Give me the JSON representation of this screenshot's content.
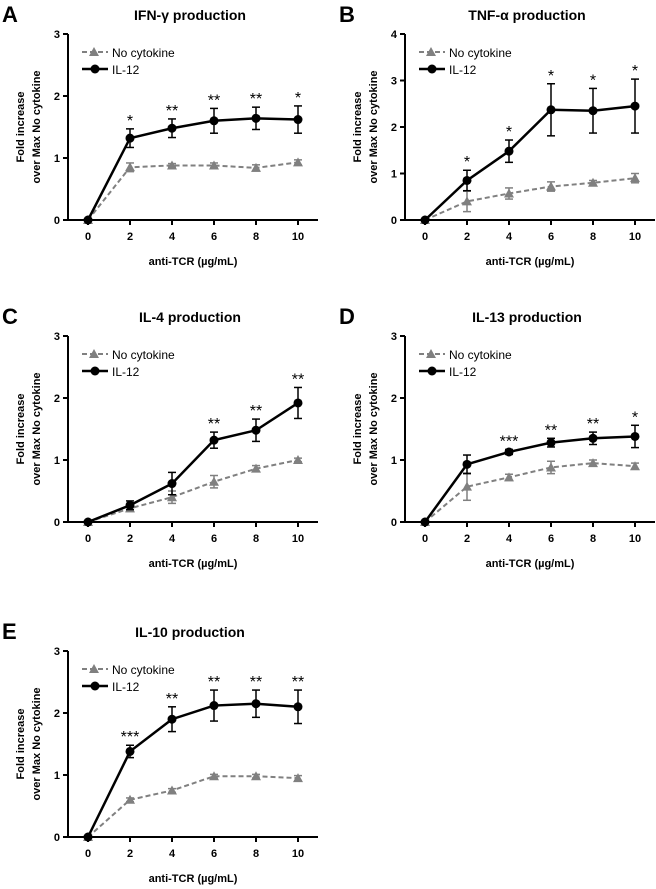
{
  "colors": {
    "il12": "#000000",
    "nocyt": "#808080"
  },
  "chart_data": [
    {
      "type": "line",
      "panel": "A",
      "title": "IFN-γ production",
      "xlabel": "anti-TCR (µg/mL)",
      "ylabel": [
        "Fold increase",
        "over Max No cytokine"
      ],
      "x": [
        0,
        2,
        4,
        6,
        8,
        10
      ],
      "xticks": [
        "0",
        "2",
        "4",
        "6",
        "8",
        "10"
      ],
      "ylim": [
        0,
        3
      ],
      "yticks": [
        "0",
        "1",
        "2",
        "3"
      ],
      "legend": "top-left",
      "series": [
        {
          "name": "No cytokine",
          "values": [
            0,
            0.85,
            0.88,
            0.88,
            0.84,
            0.93
          ],
          "errors": [
            0,
            0.07,
            0.03,
            0.04,
            0.05,
            0.04
          ]
        },
        {
          "name": "IL-12",
          "values": [
            0,
            1.32,
            1.48,
            1.6,
            1.64,
            1.62
          ],
          "errors": [
            0,
            0.15,
            0.15,
            0.2,
            0.18,
            0.22
          ]
        }
      ],
      "significance": [
        "",
        "*",
        "**",
        "**",
        "**",
        "*"
      ]
    },
    {
      "type": "line",
      "panel": "B",
      "title": "TNF-α production",
      "xlabel": "anti-TCR (µg/mL)",
      "ylabel": [
        "Fold increase",
        "over Max No cytokine"
      ],
      "x": [
        0,
        2,
        4,
        6,
        8,
        10
      ],
      "xticks": [
        "0",
        "2",
        "4",
        "6",
        "8",
        "10"
      ],
      "ylim": [
        0,
        4
      ],
      "yticks": [
        "0",
        "1",
        "2",
        "3",
        "4"
      ],
      "legend": "top-left",
      "series": [
        {
          "name": "No cytokine",
          "values": [
            0,
            0.4,
            0.57,
            0.72,
            0.8,
            0.9
          ],
          "errors": [
            0,
            0.22,
            0.12,
            0.1,
            0.05,
            0.1
          ]
        },
        {
          "name": "IL-12",
          "values": [
            0,
            0.85,
            1.48,
            2.37,
            2.35,
            2.45
          ],
          "errors": [
            0,
            0.22,
            0.24,
            0.56,
            0.48,
            0.58
          ]
        }
      ],
      "significance": [
        "",
        "*",
        "*",
        "*",
        "*",
        "*"
      ]
    },
    {
      "type": "line",
      "panel": "C",
      "title": "IL-4 production",
      "xlabel": "anti-TCR (µg/mL)",
      "ylabel": [
        "Fold increase",
        "over Max No cytokine"
      ],
      "x": [
        0,
        2,
        4,
        6,
        8,
        10
      ],
      "xticks": [
        "0",
        "2",
        "4",
        "6",
        "8",
        "10"
      ],
      "ylim": [
        0,
        3
      ],
      "yticks": [
        "0",
        "1",
        "2",
        "3"
      ],
      "legend": "top-left",
      "series": [
        {
          "name": "No cytokine",
          "values": [
            0,
            0.22,
            0.4,
            0.65,
            0.86,
            1.0
          ],
          "errors": [
            0,
            0.05,
            0.1,
            0.1,
            0.05,
            0.03
          ]
        },
        {
          "name": "IL-12",
          "values": [
            0,
            0.27,
            0.62,
            1.32,
            1.48,
            1.92
          ],
          "errors": [
            0,
            0.07,
            0.18,
            0.13,
            0.18,
            0.25
          ]
        }
      ],
      "significance": [
        "",
        "",
        "",
        "**",
        "**",
        "**"
      ]
    },
    {
      "type": "line",
      "panel": "D",
      "title": "IL-13 production",
      "xlabel": "anti-TCR (µg/mL)",
      "ylabel": [
        "Fold increase",
        "over Max No cytokine"
      ],
      "x": [
        0,
        2,
        4,
        6,
        8,
        10
      ],
      "xticks": [
        "0",
        "2",
        "4",
        "6",
        "8",
        "10"
      ],
      "ylim": [
        0,
        3
      ],
      "yticks": [
        "0",
        "1",
        "2",
        "3"
      ],
      "legend": "top-left",
      "series": [
        {
          "name": "No cytokine",
          "values": [
            0,
            0.57,
            0.72,
            0.88,
            0.95,
            0.9
          ],
          "errors": [
            0,
            0.22,
            0.05,
            0.1,
            0.05,
            0.05
          ]
        },
        {
          "name": "IL-12",
          "values": [
            0,
            0.93,
            1.13,
            1.28,
            1.35,
            1.38
          ],
          "errors": [
            0,
            0.15,
            0.04,
            0.07,
            0.1,
            0.18
          ]
        }
      ],
      "significance": [
        "",
        "",
        "***",
        "**",
        "**",
        "*"
      ]
    },
    {
      "type": "line",
      "panel": "E",
      "title": "IL-10 production",
      "xlabel": "anti-TCR (µg/mL)",
      "ylabel": [
        "Fold increase",
        "over Max No cytokine"
      ],
      "x": [
        0,
        2,
        4,
        6,
        8,
        10
      ],
      "xticks": [
        "0",
        "2",
        "4",
        "6",
        "8",
        "10"
      ],
      "ylim": [
        0,
        3
      ],
      "yticks": [
        "0",
        "1",
        "2",
        "3"
      ],
      "legend": "top-left",
      "series": [
        {
          "name": "No cytokine",
          "values": [
            0,
            0.6,
            0.75,
            0.98,
            0.98,
            0.95
          ],
          "errors": [
            0,
            0.03,
            0.03,
            0.03,
            0.03,
            0.04
          ]
        },
        {
          "name": "IL-12",
          "values": [
            0,
            1.38,
            1.9,
            2.12,
            2.15,
            2.1
          ],
          "errors": [
            0,
            0.1,
            0.2,
            0.25,
            0.22,
            0.27
          ]
        }
      ],
      "significance": [
        "",
        "***",
        "**",
        "**",
        "**",
        "**"
      ]
    }
  ]
}
